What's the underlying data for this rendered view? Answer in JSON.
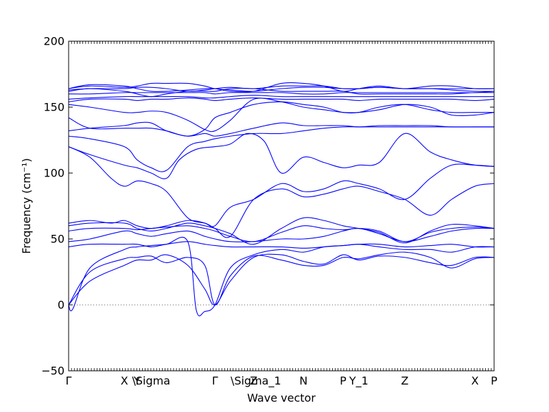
{
  "chart_data": {
    "type": "line",
    "xlabel": "Wave vector",
    "ylabel": "Frequency (cm⁻¹)",
    "ylim": [
      -50,
      200
    ],
    "yticks": [
      -50,
      0,
      50,
      100,
      150,
      200
    ],
    "xlim": [
      0,
      1
    ],
    "grid": false,
    "legend": "none",
    "zero_line": {
      "y": 0,
      "style": "dotted"
    },
    "colors": {
      "bands": "#0000ff",
      "axes": "#000000",
      "zero_line": "#555555"
    },
    "kpoints": [
      {
        "label": "Γ",
        "x": 0.0
      },
      {
        "label": "X",
        "x": 0.131
      },
      {
        "label": "Y",
        "x": 0.161
      },
      {
        "label": "\\Sigma",
        "x": 0.194
      },
      {
        "label": "Γ",
        "x": 0.344
      },
      {
        "label": "Z",
        "x": 0.435
      },
      {
        "label": "\\Sigma_1",
        "x": 0.44
      },
      {
        "label": "N",
        "x": 0.552
      },
      {
        "label": "P",
        "x": 0.645
      },
      {
        "label": "Y_1",
        "x": 0.682
      },
      {
        "label": "Z",
        "x": 0.79
      },
      {
        "label": "X",
        "x": 0.955
      },
      {
        "label": "P",
        "x": 1.0
      }
    ],
    "series": [
      {
        "x": [
          0,
          0.05,
          0.131,
          0.161,
          0.194,
          0.23,
          0.28,
          0.32,
          0.344,
          0.38,
          0.435,
          0.5,
          0.552,
          0.6,
          0.645,
          0.682,
          0.73,
          0.79,
          0.85,
          0.9,
          0.955,
          1.0
        ],
        "y": [
          0,
          18,
          30,
          34,
          34,
          38,
          30,
          12,
          0,
          18,
          36,
          38,
          33,
          31,
          38,
          34,
          37,
          36,
          32,
          30,
          36,
          36
        ]
      },
      {
        "x": [
          0,
          0.05,
          0.131,
          0.161,
          0.194,
          0.23,
          0.28,
          0.32,
          0.344,
          0.38,
          0.435,
          0.5,
          0.552,
          0.6,
          0.645,
          0.682,
          0.73,
          0.79,
          0.85,
          0.9,
          0.955,
          1.0
        ],
        "y": [
          0,
          25,
          35,
          36,
          37,
          32,
          36,
          30,
          0,
          22,
          37,
          34,
          30,
          30,
          36,
          35,
          38,
          40,
          36,
          28,
          35,
          36
        ]
      },
      {
        "x": [
          0,
          0.01,
          0.05,
          0.131,
          0.161,
          0.194,
          0.23,
          0.28,
          0.3,
          0.32,
          0.344,
          0.38,
          0.435,
          0.5,
          0.552,
          0.6,
          0.645,
          0.682,
          0.73,
          0.79,
          0.85,
          0.9,
          0.955,
          1.0
        ],
        "y": [
          0,
          -3,
          28,
          42,
          44,
          45,
          46,
          48,
          -4,
          -5,
          0,
          28,
          38,
          42,
          40,
          44,
          45,
          46,
          44,
          42,
          42,
          40,
          44,
          44
        ]
      },
      {
        "x": [
          0,
          0.05,
          0.131,
          0.161,
          0.194,
          0.23,
          0.28,
          0.32,
          0.344,
          0.38,
          0.435,
          0.5,
          0.552,
          0.6,
          0.645,
          0.682,
          0.73,
          0.79,
          0.85,
          0.9,
          0.955,
          1.0
        ],
        "y": [
          44,
          46,
          46,
          46,
          44,
          46,
          48,
          46,
          45,
          44,
          44,
          44,
          43,
          44,
          45,
          46,
          46,
          44,
          45,
          46,
          44,
          44
        ]
      },
      {
        "x": [
          0,
          0.05,
          0.131,
          0.161,
          0.194,
          0.23,
          0.28,
          0.32,
          0.344,
          0.38,
          0.435,
          0.5,
          0.552,
          0.6,
          0.645,
          0.682,
          0.73,
          0.79,
          0.85,
          0.9,
          0.955,
          1.0
        ],
        "y": [
          48,
          50,
          56,
          54,
          52,
          54,
          56,
          52,
          50,
          48,
          48,
          50,
          50,
          52,
          56,
          58,
          54,
          48,
          52,
          56,
          58,
          58
        ]
      },
      {
        "x": [
          0,
          0.05,
          0.131,
          0.161,
          0.194,
          0.23,
          0.28,
          0.32,
          0.344,
          0.38,
          0.435,
          0.5,
          0.552,
          0.6,
          0.645,
          0.682,
          0.73,
          0.79,
          0.85,
          0.9,
          0.955,
          1.0
        ],
        "y": [
          56,
          58,
          58,
          57,
          58,
          59,
          60,
          58,
          56,
          52,
          48,
          55,
          60,
          58,
          57,
          58,
          56,
          48,
          55,
          58,
          59,
          58
        ]
      },
      {
        "x": [
          0,
          0.05,
          0.131,
          0.161,
          0.194,
          0.23,
          0.28,
          0.32,
          0.344,
          0.38,
          0.435,
          0.5,
          0.552,
          0.6,
          0.645,
          0.682,
          0.73,
          0.79,
          0.85,
          0.9,
          0.955,
          1.0
        ],
        "y": [
          60,
          62,
          62,
          58,
          56,
          58,
          62,
          60,
          58,
          54,
          46,
          58,
          66,
          64,
          60,
          58,
          55,
          47,
          56,
          61,
          60,
          58
        ]
      },
      {
        "x": [
          0,
          0.05,
          0.1,
          0.131,
          0.161,
          0.194,
          0.23,
          0.28,
          0.32,
          0.344,
          0.38,
          0.435,
          0.5,
          0.552,
          0.6,
          0.645,
          0.682,
          0.73,
          0.79,
          0.85,
          0.9,
          0.955,
          1.0
        ],
        "y": [
          62,
          64,
          62,
          64,
          60,
          58,
          60,
          64,
          62,
          58,
          52,
          80,
          88,
          82,
          84,
          88,
          90,
          86,
          80,
          68,
          80,
          90,
          92
        ]
      },
      {
        "x": [
          0,
          0.05,
          0.1,
          0.131,
          0.161,
          0.194,
          0.23,
          0.28,
          0.32,
          0.344,
          0.38,
          0.435,
          0.5,
          0.552,
          0.6,
          0.645,
          0.682,
          0.73,
          0.79,
          0.85,
          0.9,
          0.955,
          1.0
        ],
        "y": [
          120,
          112,
          96,
          90,
          94,
          92,
          86,
          66,
          62,
          60,
          74,
          80,
          92,
          86,
          88,
          94,
          92,
          88,
          80,
          96,
          106,
          106,
          105
        ]
      },
      {
        "x": [
          0,
          0.05,
          0.131,
          0.161,
          0.194,
          0.23,
          0.26,
          0.3,
          0.344,
          0.38,
          0.42,
          0.46,
          0.5,
          0.552,
          0.6,
          0.645,
          0.682,
          0.73,
          0.79,
          0.85,
          0.9,
          0.955,
          1.0
        ],
        "y": [
          120,
          114,
          106,
          104,
          100,
          96,
          110,
          118,
          120,
          122,
          130,
          124,
          100,
          112,
          108,
          104,
          106,
          108,
          130,
          116,
          110,
          106,
          105
        ]
      },
      {
        "x": [
          0,
          0.05,
          0.131,
          0.161,
          0.194,
          0.23,
          0.28,
          0.32,
          0.344,
          0.38,
          0.435,
          0.5,
          0.552,
          0.6,
          0.645,
          0.682,
          0.73,
          0.79,
          0.85,
          0.9,
          0.955,
          1.0
        ],
        "y": [
          128,
          126,
          120,
          110,
          104,
          102,
          120,
          124,
          126,
          128,
          130,
          130,
          132,
          134,
          135,
          135,
          135,
          135,
          135,
          135,
          135,
          135
        ]
      },
      {
        "x": [
          0,
          0.05,
          0.131,
          0.161,
          0.194,
          0.23,
          0.28,
          0.32,
          0.344,
          0.38,
          0.435,
          0.5,
          0.552,
          0.6,
          0.645,
          0.682,
          0.73,
          0.79,
          0.85,
          0.9,
          0.955,
          1.0
        ],
        "y": [
          132,
          134,
          136,
          138,
          138,
          132,
          128,
          130,
          128,
          130,
          134,
          138,
          136,
          136,
          136,
          135,
          136,
          136,
          136,
          135,
          135,
          135
        ]
      },
      {
        "x": [
          0,
          0.05,
          0.131,
          0.161,
          0.194,
          0.23,
          0.28,
          0.32,
          0.344,
          0.38,
          0.435,
          0.5,
          0.552,
          0.6,
          0.645,
          0.682,
          0.73,
          0.79,
          0.85,
          0.9,
          0.955,
          1.0
        ],
        "y": [
          142,
          134,
          134,
          134,
          134,
          132,
          128,
          133,
          142,
          146,
          152,
          154,
          152,
          150,
          146,
          146,
          150,
          152,
          148,
          146,
          146,
          146
        ]
      },
      {
        "x": [
          0,
          0.05,
          0.131,
          0.161,
          0.194,
          0.23,
          0.28,
          0.32,
          0.344,
          0.38,
          0.435,
          0.5,
          0.552,
          0.6,
          0.645,
          0.682,
          0.73,
          0.79,
          0.85,
          0.9,
          0.955,
          1.0
        ],
        "y": [
          152,
          150,
          146,
          146,
          147,
          146,
          140,
          133,
          132,
          140,
          156,
          154,
          150,
          148,
          146,
          146,
          148,
          152,
          150,
          144,
          144,
          146
        ]
      },
      {
        "x": [
          0,
          0.05,
          0.131,
          0.161,
          0.194,
          0.23,
          0.28,
          0.32,
          0.344,
          0.38,
          0.435,
          0.5,
          0.552,
          0.6,
          0.645,
          0.682,
          0.73,
          0.79,
          0.85,
          0.9,
          0.955,
          1.0
        ],
        "y": [
          154,
          156,
          156,
          155,
          156,
          156,
          157,
          156,
          155,
          156,
          157,
          156,
          156,
          156,
          156,
          155,
          156,
          156,
          156,
          156,
          155,
          156
        ]
      },
      {
        "x": [
          0,
          0.05,
          0.131,
          0.161,
          0.194,
          0.23,
          0.28,
          0.32,
          0.344,
          0.38,
          0.435,
          0.5,
          0.552,
          0.6,
          0.645,
          0.682,
          0.73,
          0.79,
          0.85,
          0.9,
          0.955,
          1.0
        ],
        "y": [
          156,
          157,
          158,
          158,
          158,
          158,
          158,
          157,
          157,
          158,
          159,
          158,
          158,
          158,
          158,
          158,
          158,
          158,
          158,
          158,
          158,
          158
        ]
      },
      {
        "x": [
          0,
          0.05,
          0.131,
          0.161,
          0.194,
          0.23,
          0.28,
          0.32,
          0.344,
          0.38,
          0.435,
          0.5,
          0.552,
          0.6,
          0.645,
          0.682,
          0.73,
          0.79,
          0.85,
          0.9,
          0.955,
          1.0
        ],
        "y": [
          160,
          160,
          161,
          161,
          161,
          161,
          161,
          161,
          160,
          161,
          161,
          161,
          160,
          160,
          161,
          161,
          161,
          161,
          161,
          161,
          161,
          162
        ]
      },
      {
        "x": [
          0,
          0.05,
          0.131,
          0.161,
          0.194,
          0.23,
          0.28,
          0.32,
          0.344,
          0.38,
          0.435,
          0.5,
          0.552,
          0.6,
          0.645,
          0.682,
          0.73,
          0.79,
          0.85,
          0.9,
          0.955,
          1.0
        ],
        "y": [
          162,
          164,
          162,
          160,
          158,
          160,
          162,
          162,
          162,
          164,
          164,
          162,
          162,
          162,
          162,
          160,
          160,
          160,
          160,
          160,
          161,
          161
        ]
      },
      {
        "x": [
          0,
          0.05,
          0.131,
          0.161,
          0.194,
          0.23,
          0.28,
          0.32,
          0.344,
          0.38,
          0.435,
          0.5,
          0.552,
          0.6,
          0.645,
          0.682,
          0.73,
          0.79,
          0.85,
          0.9,
          0.955,
          1.0
        ],
        "y": [
          163,
          164,
          164,
          165,
          165,
          164,
          162,
          163,
          164,
          165,
          164,
          166,
          166,
          166,
          164,
          164,
          165,
          164,
          164,
          163,
          162,
          162
        ]
      },
      {
        "x": [
          0,
          0.05,
          0.131,
          0.161,
          0.194,
          0.23,
          0.28,
          0.32,
          0.344,
          0.38,
          0.435,
          0.5,
          0.552,
          0.6,
          0.645,
          0.682,
          0.73,
          0.79,
          0.85,
          0.9,
          0.955,
          1.0
        ],
        "y": [
          164,
          166,
          165,
          166,
          168,
          168,
          168,
          166,
          164,
          163,
          162,
          164,
          165,
          165,
          164,
          164,
          165,
          164,
          164,
          164,
          164,
          164
        ]
      },
      {
        "x": [
          0,
          0.05,
          0.131,
          0.161,
          0.194,
          0.23,
          0.28,
          0.32,
          0.344,
          0.38,
          0.435,
          0.5,
          0.552,
          0.6,
          0.645,
          0.682,
          0.73,
          0.79,
          0.85,
          0.9,
          0.955,
          1.0
        ],
        "y": [
          164,
          167,
          166,
          164,
          162,
          162,
          163,
          164,
          164,
          162,
          162,
          168,
          168,
          166,
          162,
          164,
          166,
          164,
          166,
          166,
          164,
          164
        ]
      }
    ]
  }
}
